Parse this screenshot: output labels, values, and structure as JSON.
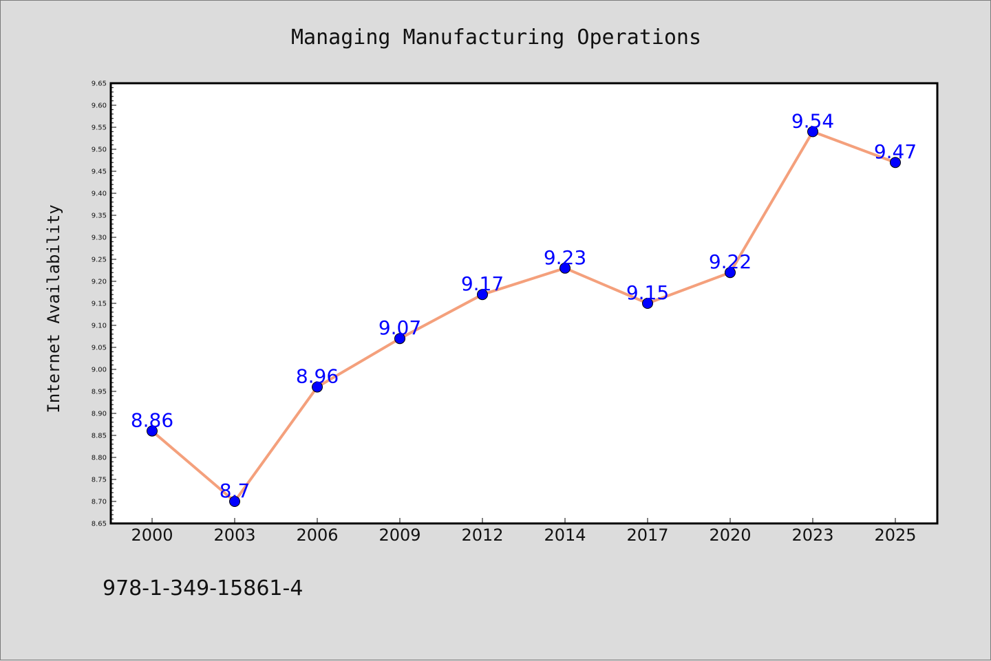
{
  "chart_data": {
    "type": "line",
    "title": "Managing Manufacturing Operations",
    "xlabel": "",
    "ylabel": "Internet Availability",
    "categories": [
      "2000",
      "2003",
      "2006",
      "2009",
      "2012",
      "2014",
      "2017",
      "2020",
      "2023",
      "2025"
    ],
    "series": [
      {
        "values": [
          8.86,
          8.7,
          8.96,
          9.07,
          9.17,
          9.23,
          9.15,
          9.22,
          9.54,
          9.47
        ],
        "data_labels": [
          "8.86",
          "8.7",
          "8.96",
          "9.07",
          "9.17",
          "9.23",
          "9.15",
          "9.22",
          "9.54",
          "9.47"
        ],
        "line_color": "#f4a07c",
        "marker_color": "#0000ff",
        "label_color": "#0000ff"
      }
    ],
    "ylim": [
      8.65,
      9.65
    ],
    "yticks": [
      "8.65",
      "8.70",
      "8.75",
      "8.80",
      "8.85",
      "8.90",
      "8.95",
      "9.00",
      "9.05",
      "9.10",
      "9.15",
      "9.20",
      "9.25",
      "9.30",
      "9.35",
      "9.40",
      "9.45",
      "9.50",
      "9.55",
      "9.60",
      "9.65"
    ],
    "grid": false,
    "legend": "none"
  },
  "footer": {
    "text": "978-1-349-15861-4"
  },
  "colors": {
    "background": "#dcdcdc",
    "plot_background": "#ffffff"
  }
}
